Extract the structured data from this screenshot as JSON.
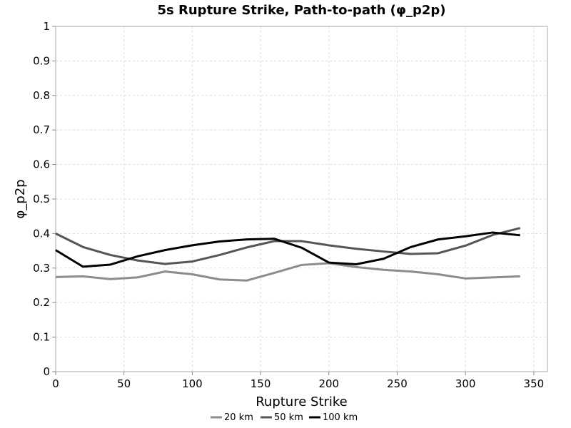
{
  "chart_data": {
    "type": "line",
    "title": "5s Rupture Strike, Path-to-path (φ_p2p)",
    "xlabel": "Rupture Strike",
    "ylabel": "φ_p2p",
    "xlim": [
      0,
      360
    ],
    "ylim": [
      0,
      1
    ],
    "x_ticks": [
      0,
      50,
      100,
      150,
      200,
      250,
      300,
      350
    ],
    "y_ticks": [
      0,
      0.1,
      0.2,
      0.3,
      0.4,
      0.5,
      0.6,
      0.7,
      0.8,
      0.9,
      1
    ],
    "y_tick_labels": [
      "0",
      "0.1",
      "0.2",
      "0.3",
      "0.4",
      "0.5",
      "0.6",
      "0.7",
      "0.8",
      "0.9",
      "1"
    ],
    "grid": true,
    "legend_position": "bottom-center",
    "x": [
      0,
      20,
      40,
      60,
      80,
      100,
      120,
      140,
      160,
      180,
      200,
      220,
      240,
      260,
      280,
      300,
      320,
      340
    ],
    "series": [
      {
        "name": "20 km",
        "color": "#8c8c8c",
        "values": [
          0.274,
          0.276,
          0.268,
          0.273,
          0.29,
          0.282,
          0.267,
          0.264,
          0.286,
          0.309,
          0.314,
          0.303,
          0.295,
          0.29,
          0.282,
          0.27,
          0.273,
          0.276
        ]
      },
      {
        "name": "50 km",
        "color": "#555555",
        "values": [
          0.4,
          0.361,
          0.338,
          0.322,
          0.312,
          0.319,
          0.338,
          0.36,
          0.378,
          0.378,
          0.366,
          0.356,
          0.348,
          0.341,
          0.343,
          0.365,
          0.396,
          0.416
        ]
      },
      {
        "name": "100 km",
        "color": "#000000",
        "values": [
          0.352,
          0.304,
          0.31,
          0.334,
          0.352,
          0.366,
          0.377,
          0.383,
          0.385,
          0.359,
          0.316,
          0.311,
          0.327,
          0.361,
          0.383,
          0.392,
          0.403,
          0.395
        ]
      }
    ]
  }
}
